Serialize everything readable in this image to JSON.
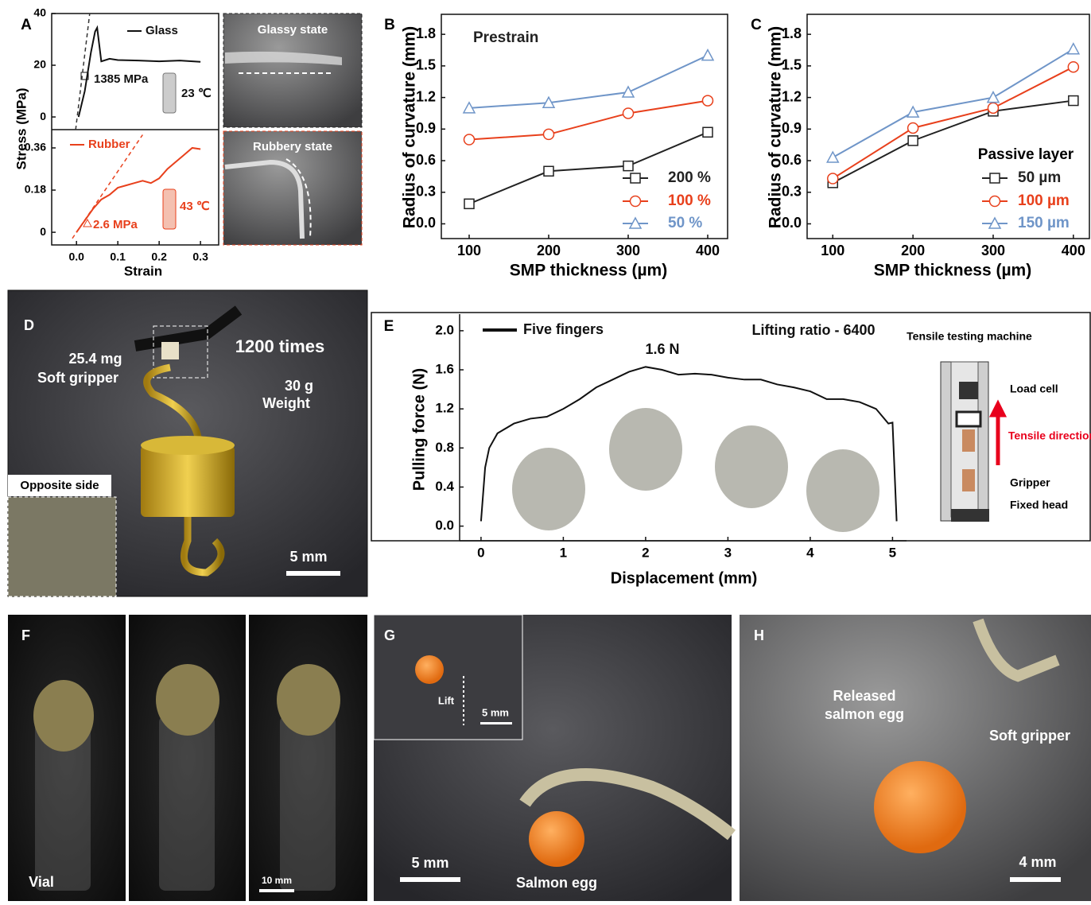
{
  "chart_data": [
    {
      "type": "line",
      "panel": "A",
      "ylabel": "Stress (MPa)",
      "xlim": [
        -0.06,
        0.344
      ],
      "ylim": [
        -4.9,
        40
      ],
      "yticks": [
        0,
        20,
        40
      ],
      "series": [
        {
          "name": "Glass",
          "color": "#111111",
          "x": [
            0.005,
            0.02,
            0.035,
            0.045,
            0.05,
            0.055,
            0.06,
            0.08,
            0.1,
            0.15,
            0.2,
            0.25,
            0.3
          ],
          "values": [
            0,
            10,
            25,
            33,
            34.5,
            28,
            21.5,
            22.5,
            22,
            21.8,
            21.5,
            21.8,
            21.3
          ]
        },
        {
          "color": "#333333",
          "dash": true,
          "x": [
            -0.002,
            0.032
          ],
          "values": [
            -4.9,
            40
          ]
        }
      ],
      "annotations": [
        "1385 MPa",
        "23 ℃"
      ]
    },
    {
      "type": "line",
      "xlabel": "Strain",
      "xlim": [
        -0.06,
        0.344
      ],
      "ylim": [
        -0.054,
        0.438
      ],
      "yticks": [
        0,
        0.18,
        0.36
      ],
      "xticks": [
        {
          "value": 0,
          "label": "0.0"
        },
        0.1,
        0.2,
        0.3
      ],
      "series": [
        {
          "name": "Rubber",
          "color": "#e8401c",
          "x": [
            0,
            0.02,
            0.04,
            0.06,
            0.08,
            0.1,
            0.12,
            0.14,
            0.16,
            0.18,
            0.2,
            0.22,
            0.24,
            0.26,
            0.28,
            0.3
          ],
          "values": [
            0,
            0.05,
            0.1,
            0.14,
            0.16,
            0.19,
            0.2,
            0.21,
            0.22,
            0.21,
            0.23,
            0.27,
            0.3,
            0.33,
            0.36,
            0.355
          ]
        },
        {
          "color": "#e8401c",
          "dash": true,
          "x": [
            -0.01,
            0.16
          ],
          "values": [
            -0.026,
            0.416
          ]
        }
      ],
      "annotations": [
        "2.6 MPa",
        "43 ℃"
      ]
    },
    {
      "type": "line",
      "panel": "B",
      "xlabel": "SMP thickness (µm)",
      "ylabel": "Radius of curvature (mm)",
      "xlim": [
        65,
        425
      ],
      "ylim": [
        -0.14,
        1.99
      ],
      "x": [
        100,
        200,
        300,
        400
      ],
      "xticks": [
        100,
        200,
        300,
        400
      ],
      "yticks": [
        {
          "value": 0,
          "label": "0.0"
        },
        0.3,
        0.6,
        0.9,
        1.2,
        1.5,
        1.8
      ],
      "series": [
        {
          "name": "200 %",
          "color": "#222222",
          "marker": "square",
          "values": [
            0.19,
            0.5,
            0.55,
            0.87
          ]
        },
        {
          "name": "100 %",
          "color": "#e8401c",
          "marker": "circle",
          "values": [
            0.8,
            0.85,
            1.05,
            1.17
          ]
        },
        {
          "name": "50 %",
          "color": "#6f95c8",
          "marker": "triangle",
          "values": [
            1.1,
            1.15,
            1.25,
            1.6
          ]
        }
      ],
      "annotations": [
        "Prestrain"
      ]
    },
    {
      "type": "line",
      "panel": "C",
      "xlabel": "SMP thickness (µm)",
      "ylabel": "Radius of curvature (mm)",
      "xlim": [
        68,
        420
      ],
      "ylim": [
        -0.14,
        1.99
      ],
      "x": [
        100,
        200,
        300,
        400
      ],
      "xticks": [
        100,
        200,
        300,
        400
      ],
      "yticks": [
        {
          "value": 0,
          "label": "0.0"
        },
        0.3,
        0.6,
        0.9,
        1.2,
        1.5,
        1.8
      ],
      "legend_title": "Passive layer",
      "series": [
        {
          "name": "50 µm",
          "color": "#222222",
          "marker": "square",
          "values": [
            0.39,
            0.79,
            1.07,
            1.17
          ]
        },
        {
          "name": "100 µm",
          "color": "#e8401c",
          "marker": "circle",
          "values": [
            0.43,
            0.91,
            1.1,
            1.49
          ]
        },
        {
          "name": "150 µm",
          "color": "#6f95c8",
          "marker": "triangle",
          "values": [
            0.63,
            1.06,
            1.2,
            1.66
          ]
        }
      ]
    },
    {
      "type": "line",
      "panel": "E",
      "xlabel": "Displacement (mm)",
      "ylabel": "Pulling force (N)",
      "xlim": [
        -0.26,
        5.17
      ],
      "ylim": [
        -0.15,
        2.17
      ],
      "xticks": [
        0,
        1,
        2,
        3,
        4,
        5
      ],
      "yticks": [
        {
          "value": 0,
          "label": "0.0"
        },
        0.4,
        0.8,
        1.2,
        1.6,
        {
          "value": 2,
          "label": "2.0"
        }
      ],
      "series": [
        {
          "name": "Five fingers",
          "color": "#111111",
          "x": [
            0,
            0.05,
            0.1,
            0.2,
            0.4,
            0.6,
            0.8,
            1.0,
            1.2,
            1.4,
            1.6,
            1.8,
            2.0,
            2.2,
            2.4,
            2.6,
            2.8,
            3.0,
            3.2,
            3.4,
            3.6,
            3.8,
            4.0,
            4.2,
            4.4,
            4.6,
            4.8,
            4.95,
            5.0,
            5.05
          ],
          "values": [
            0.05,
            0.6,
            0.8,
            0.95,
            1.05,
            1.1,
            1.12,
            1.2,
            1.3,
            1.42,
            1.5,
            1.58,
            1.63,
            1.6,
            1.55,
            1.56,
            1.55,
            1.52,
            1.5,
            1.5,
            1.45,
            1.42,
            1.38,
            1.3,
            1.3,
            1.27,
            1.2,
            1.05,
            1.06,
            0.05
          ]
        }
      ],
      "annotations": [
        "1.6 N",
        "Lifting ratio - 6400"
      ]
    }
  ],
  "panels": {
    "A_photos": {
      "glassy": "Glassy state",
      "rubbery": "Rubbery state"
    },
    "D": {
      "label": "D",
      "mass": "25.4 mg",
      "gripper": "Soft gripper",
      "cycles": "1200 times",
      "weight_mass": "30 g",
      "weight": "Weight",
      "inset": "Opposite side",
      "scale": "5 mm"
    },
    "E_diagram": {
      "title": "Tensile testing machine",
      "load_cell": "Load cell",
      "direction": "Tensile direction",
      "gripper": "Gripper",
      "fixed_head": "Fixed head"
    },
    "F": {
      "label": "F",
      "vial": "Vial",
      "scale": "10 mm"
    },
    "G": {
      "label": "G",
      "lift": "Lift",
      "inset_scale": "5 mm",
      "scale": "5 mm",
      "egg": "Salmon egg"
    },
    "H": {
      "label": "H",
      "released": "Released",
      "released2": "salmon egg",
      "gripper": "Soft gripper",
      "scale": "4 mm"
    }
  }
}
